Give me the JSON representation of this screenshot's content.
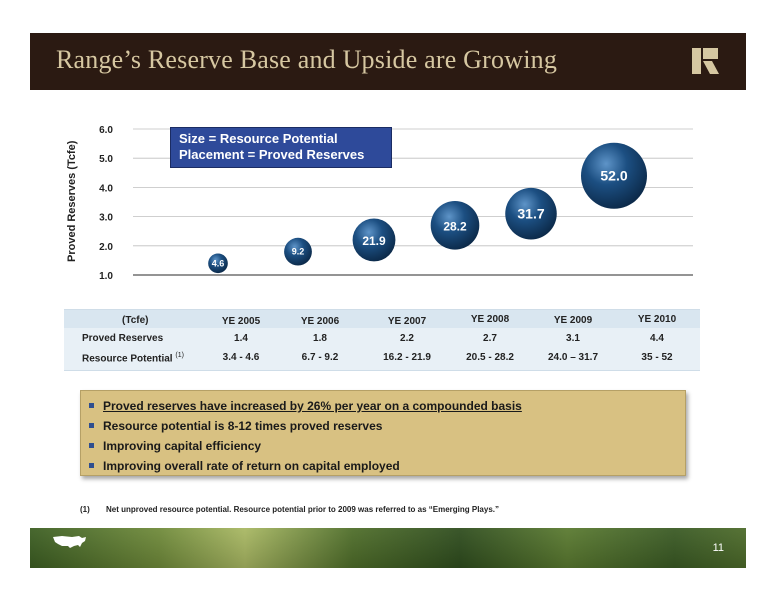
{
  "header": {
    "title": "Range’s Reserve Base and Upside are Growing",
    "background": "#2b1a12",
    "title_color": "#d6c7a1"
  },
  "chart_data": {
    "type": "scatter",
    "ylabel": "Proved Reserves (Tcfe)",
    "ylim": [
      1.0,
      6.0
    ],
    "yticks": [
      "1.0",
      "2.0",
      "3.0",
      "4.0",
      "5.0",
      "6.0"
    ],
    "grid": true,
    "legend": [
      "Size = Resource Potential",
      "Placement = Proved Reserves"
    ],
    "legend_placement": "top-left",
    "points": [
      {
        "label": "4.6",
        "proved_reserves": 1.4,
        "resource_potential": 4.6
      },
      {
        "label": "9.2",
        "proved_reserves": 1.8,
        "resource_potential": 9.2
      },
      {
        "label": "21.9",
        "proved_reserves": 2.2,
        "resource_potential": 21.9
      },
      {
        "label": "28.2",
        "proved_reserves": 2.7,
        "resource_potential": 28.2
      },
      {
        "label": "31.7",
        "proved_reserves": 3.1,
        "resource_potential": 31.7
      },
      {
        "label": "52.0",
        "proved_reserves": 4.4,
        "resource_potential": 52.0
      }
    ],
    "bubble_color": "#1c4f82"
  },
  "table": {
    "unit": "(Tcfe)",
    "columns": [
      "YE 2005",
      "YE 2006",
      "YE 2007",
      "YE 2008",
      "YE 2009",
      "YE 2010"
    ],
    "rows": [
      {
        "label": "Proved Reserves",
        "values": [
          "1.4",
          "1.8",
          "2.2",
          "2.7",
          "3.1",
          "4.4"
        ]
      },
      {
        "label": "Resource  Potential",
        "sup": "(1)",
        "values": [
          "3.4 - 4.6",
          "6.7 - 9.2",
          "16.2 - 21.9",
          "20.5 - 28.2",
          "24.0 – 31.7",
          "35 - 52"
        ]
      }
    ]
  },
  "bullets": [
    "Proved reserves have increased by 26% per year on a compounded basis",
    "Resource potential is 8-12 times proved reserves",
    "Improving capital efficiency",
    "Improving overall rate of return on capital employed"
  ],
  "footnote": {
    "number": "(1)",
    "text": "Net unproved resource potential.  Resource potential prior to 2009 was referred to as “Emerging Plays.”"
  },
  "footer": {
    "page_number": "11"
  }
}
